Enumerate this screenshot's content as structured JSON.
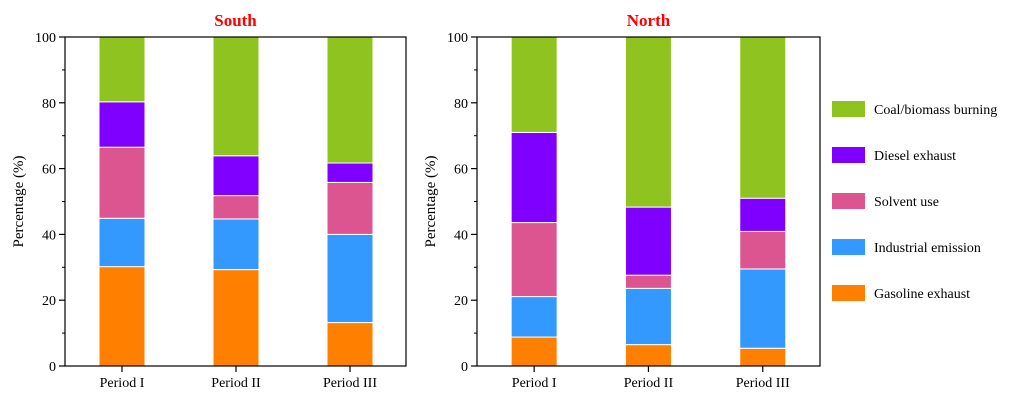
{
  "chart_data": [
    {
      "type": "bar",
      "stacked": true,
      "title": "South",
      "title_color": "#ff0000",
      "xlabel": "",
      "ylabel": "Percentage (%)",
      "ylim": [
        0,
        100
      ],
      "yticks": [
        0,
        20,
        40,
        60,
        80,
        100
      ],
      "categories": [
        "Period I",
        "Period II",
        "Period III"
      ],
      "series": [
        {
          "name": "Gasoline exhaust",
          "color": "#ff8000",
          "values": [
            30.2,
            29.3,
            13.2
          ]
        },
        {
          "name": "Industrial emission",
          "color": "#3399ff",
          "values": [
            14.7,
            15.4,
            26.8
          ]
        },
        {
          "name": "Solvent use",
          "color": "#dd5590",
          "values": [
            21.6,
            7.1,
            15.8
          ]
        },
        {
          "name": "Diesel exhaust",
          "color": "#8000ff",
          "values": [
            13.8,
            12.1,
            5.9
          ]
        },
        {
          "name": "Coal/biomass burning",
          "color": "#8fc31f",
          "values": [
            19.7,
            36.1,
            38.3
          ]
        }
      ]
    },
    {
      "type": "bar",
      "stacked": true,
      "title": "North",
      "title_color": "#ff0000",
      "xlabel": "",
      "ylabel": "Percentage (%)",
      "ylim": [
        0,
        100
      ],
      "yticks": [
        0,
        20,
        40,
        60,
        80,
        100
      ],
      "categories": [
        "Period I",
        "Period II",
        "Period III"
      ],
      "series": [
        {
          "name": "Gasoline exhaust",
          "color": "#ff8000",
          "values": [
            8.8,
            6.5,
            5.4
          ]
        },
        {
          "name": "Industrial emission",
          "color": "#3399ff",
          "values": [
            12.3,
            17.1,
            24.1
          ]
        },
        {
          "name": "Solvent use",
          "color": "#dd5590",
          "values": [
            22.5,
            4.0,
            11.4
          ]
        },
        {
          "name": "Diesel exhaust",
          "color": "#8000ff",
          "values": [
            27.4,
            20.7,
            10.1
          ]
        },
        {
          "name": "Coal/biomass burning",
          "color": "#8fc31f",
          "values": [
            29.0,
            51.7,
            49.0
          ]
        }
      ]
    }
  ],
  "legend": {
    "placement": "right",
    "items": [
      {
        "label": "Coal/biomass burning",
        "color": "#8fc31f"
      },
      {
        "label": "Diesel exhaust",
        "color": "#8000ff"
      },
      {
        "label": "Solvent use",
        "color": "#dd5590"
      },
      {
        "label": "Industrial emission",
        "color": "#3399ff"
      },
      {
        "label": "Gasoline exhaust",
        "color": "#ff8000"
      }
    ]
  }
}
